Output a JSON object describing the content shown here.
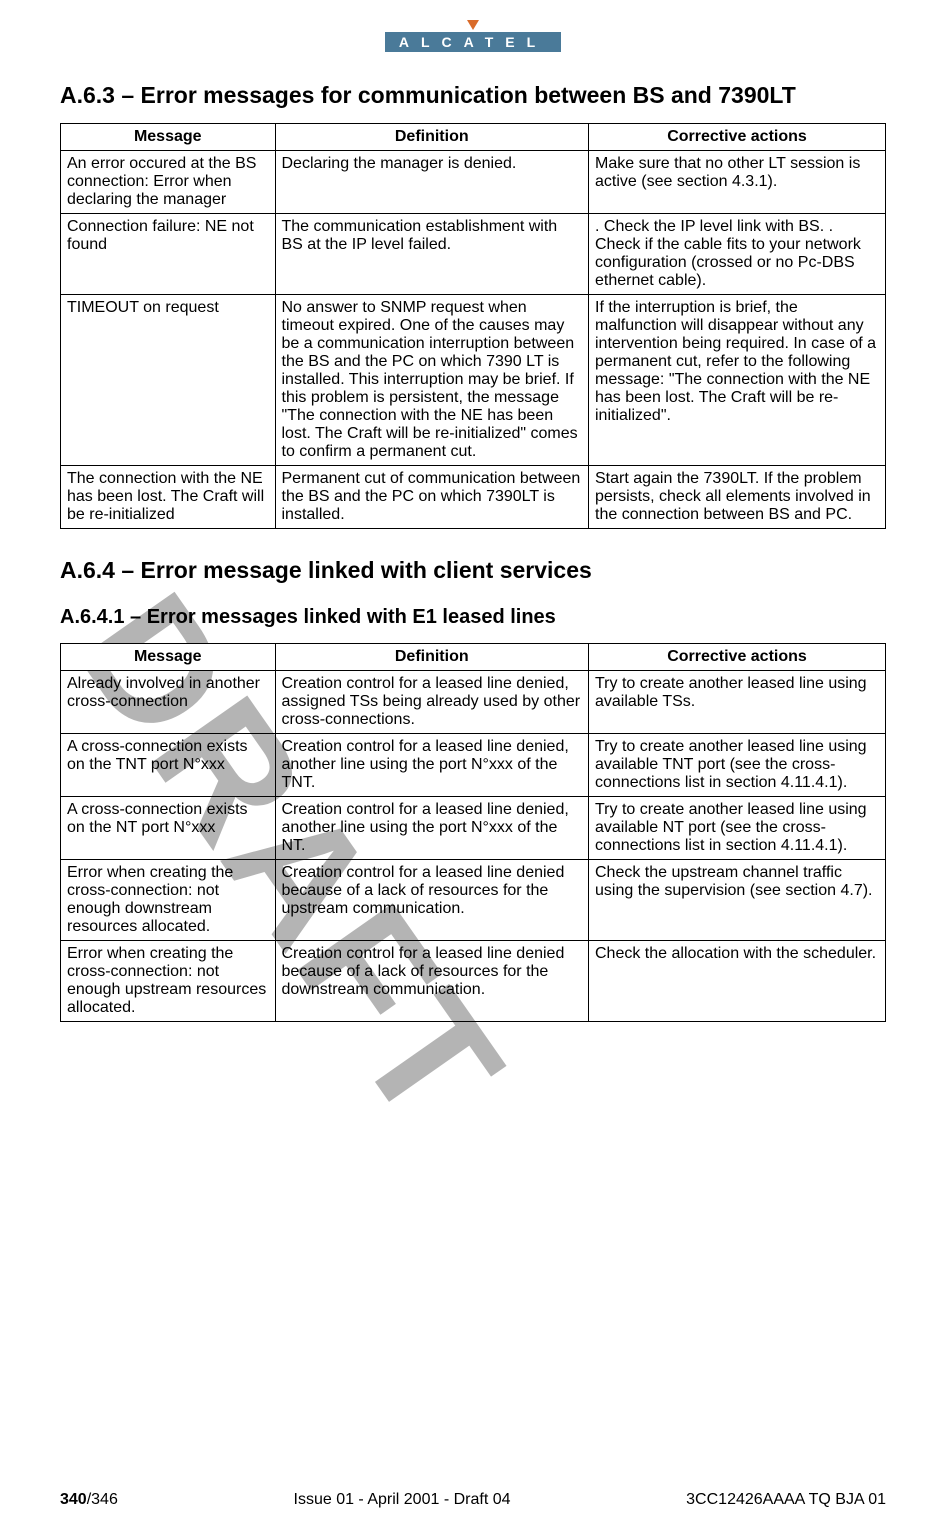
{
  "logo": {
    "text": "ALCATEL"
  },
  "watermark": "DRAFT",
  "sections": {
    "s1": {
      "heading": "A.6.3 – Error messages for communication between BS and 7390LT",
      "cols": [
        "Message",
        "Definition",
        "Corrective actions"
      ],
      "rows": [
        {
          "msg": "An error occured at the BS connection: Error when declaring the manager",
          "def": "Declaring the manager is denied.",
          "act": "Make sure that no other LT session is active (see section 4.3.1)."
        },
        {
          "msg": "Connection failure: NE not found",
          "def": "The communication establishment with BS at the IP level failed.",
          "act": ".  Check the IP level link with BS.\n.  Check if the cable fits to your network configuration (crossed or no Pc-DBS ethernet cable)."
        },
        {
          "msg": "TIMEOUT on request",
          "def": "No answer to SNMP request when timeout expired. One of the causes may be a communication interruption between the BS and the PC on which 7390 LT is installed. This interruption may be brief. If this problem is persistent, the message \"The connection with the NE has been lost. The Craft will be re-initialized\" comes to confirm a permanent cut.",
          "act": "If the interruption is brief, the malfunction will disappear without any intervention being required. In case of a permanent cut, refer to the following message: \"The connection with the NE has been lost. The Craft will be re-initialized\"."
        },
        {
          "msg": "The connection with the NE has been lost. The Craft will be re-initialized",
          "def": "Permanent cut of communication between the BS and the PC on which 7390LT is installed.",
          "act": "Start again the 7390LT. If the problem persists, check all elements involved in the connection between BS and PC."
        }
      ]
    },
    "s2": {
      "heading": "A.6.4 – Error message linked with client services",
      "sub_heading": "A.6.4.1 – Error messages linked with E1 leased lines",
      "cols": [
        "Message",
        "Definition",
        "Corrective actions"
      ],
      "rows": [
        {
          "msg": "Already involved in another cross-connection",
          "def": "Creation control for a leased line denied, assigned TSs being already used by other cross-connections.",
          "act": "Try to create another leased line using available TSs."
        },
        {
          "msg": "A cross-connection exists on the TNT port N°xxx",
          "def": "Creation control for a leased line denied, another line using the port N°xxx of the TNT.",
          "act": "Try to create another leased line using available TNT port (see the cross-connections list in section 4.11.4.1)."
        },
        {
          "msg": "A cross-connection exists on the NT port N°xxx",
          "def": "Creation control for a leased line denied, another line using the port N°xxx of the NT.",
          "act": "Try to create another leased line using available NT port (see the cross-connections list in section 4.11.4.1)."
        },
        {
          "msg": "Error when creating the cross-connection: not enough downstream resources allocated.",
          "def": "Creation control for a leased line denied because of a lack of resources for the upstream communication.",
          "act": "Check the upstream channel traffic using the supervision (see section 4.7)."
        },
        {
          "msg": "Error when creating the cross-connection: not enough upstream resources allocated.",
          "def": "Creation control for a leased line denied because of a lack of resources for the downstream communication.",
          "act": "Check the allocation with the scheduler."
        }
      ]
    }
  },
  "footer": {
    "page_num": "340",
    "page_total": "/346",
    "center": "Issue 01 - April 2001 - Draft 04",
    "right": "3CC12426AAAA TQ BJA 01"
  }
}
